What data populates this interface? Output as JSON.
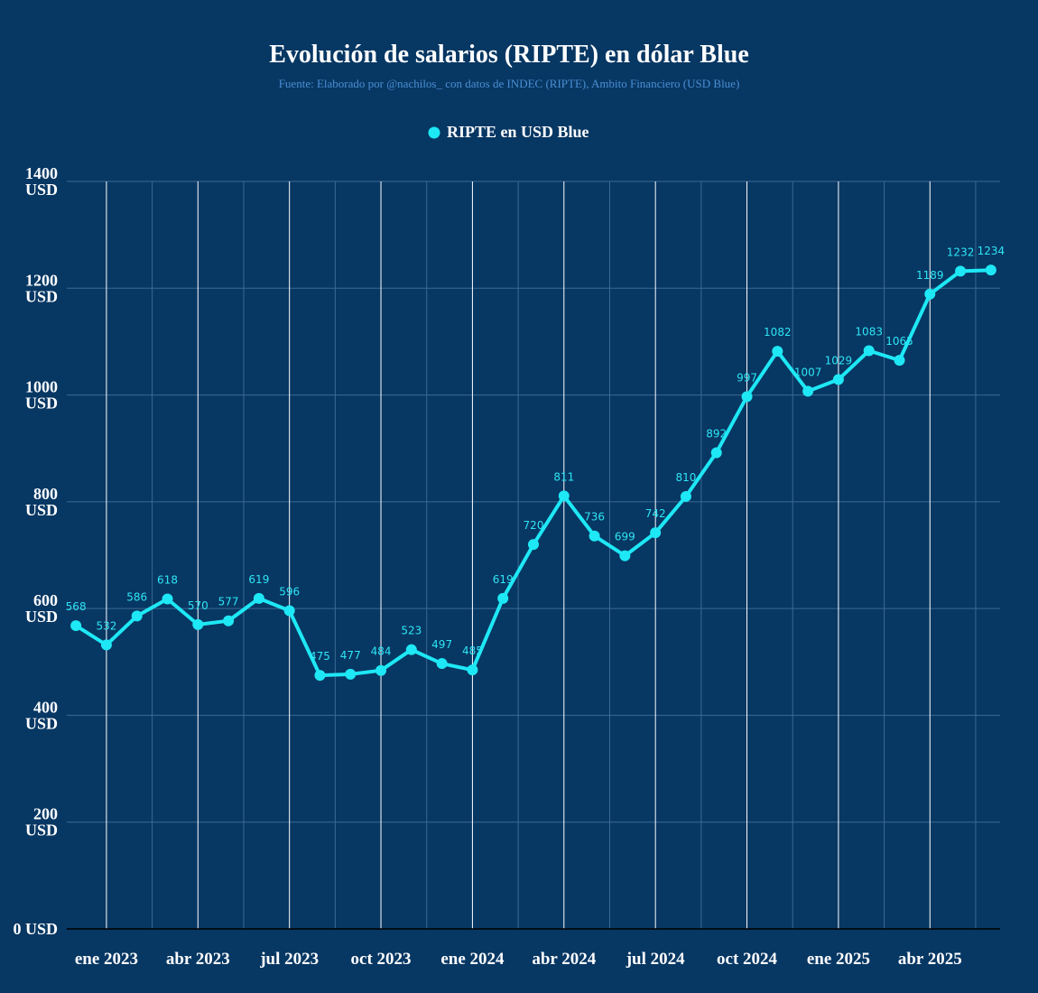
{
  "colors": {
    "background": "#073763",
    "series": "#1ee8f5",
    "grid_major": "#ffffff",
    "grid_minor": "#3b6a92",
    "subtitle": "#4a8fd4"
  },
  "chart_data": {
    "type": "line",
    "title": "Evolución de salarios (RIPTE) en dólar Blue",
    "subtitle": "Fuente: Elaborado por @nachilos_ con datos de INDEC (RIPTE), Ambito Financiero (USD Blue)",
    "xlabel": "",
    "ylabel": "",
    "ylim": [
      0,
      1400
    ],
    "yticks": [
      {
        "value": 0,
        "label": "0 USD"
      },
      {
        "value": 200,
        "label": "200 USD"
      },
      {
        "value": 400,
        "label": "400 USD"
      },
      {
        "value": 600,
        "label": "600 USD"
      },
      {
        "value": 800,
        "label": "800 USD"
      },
      {
        "value": 1000,
        "label": "1000 USD"
      },
      {
        "value": 1200,
        "label": "1200 USD"
      },
      {
        "value": 1400,
        "label": "1400 USD"
      }
    ],
    "xticks": [
      {
        "month_index": 1,
        "label": "ene 2023"
      },
      {
        "month_index": 4,
        "label": "abr 2023"
      },
      {
        "month_index": 7,
        "label": "jul 2023"
      },
      {
        "month_index": 10,
        "label": "oct 2023"
      },
      {
        "month_index": 13,
        "label": "ene 2024"
      },
      {
        "month_index": 16,
        "label": "abr 2024"
      },
      {
        "month_index": 19,
        "label": "jul 2024"
      },
      {
        "month_index": 22,
        "label": "oct 2024"
      },
      {
        "month_index": 25,
        "label": "ene 2025"
      },
      {
        "month_index": 28,
        "label": "abr 2025"
      }
    ],
    "x_range": [
      -0.3,
      30.3
    ],
    "legend": {
      "position": "top-center",
      "label": "RIPTE en USD Blue"
    },
    "grid": true,
    "series": [
      {
        "name": "RIPTE en USD Blue",
        "x": [
          0,
          1,
          2,
          3,
          4,
          5,
          6,
          7,
          8,
          9,
          10,
          11,
          12,
          13,
          14,
          15,
          16,
          17,
          18,
          19,
          20,
          21,
          22,
          23,
          24,
          25,
          26,
          27,
          28,
          29,
          30
        ],
        "values": [
          568,
          532,
          586,
          618,
          570,
          577,
          619,
          596,
          475,
          477,
          484,
          523,
          497,
          485,
          619,
          720,
          811,
          736,
          699,
          742,
          810,
          892,
          997,
          1082,
          1007,
          1029,
          1083,
          1065,
          1189,
          1232,
          1234
        ],
        "labels": [
          "568",
          "532",
          "586",
          "618",
          "570",
          "577",
          "619",
          "596",
          "475",
          "477",
          "484",
          "523",
          "497",
          "485",
          "619",
          "720",
          "811",
          "736",
          "699",
          "742",
          "810",
          "892",
          "997",
          "1082",
          "1007",
          "1029",
          "1083",
          "1065",
          "1189",
          "1232",
          "1234"
        ]
      }
    ]
  }
}
